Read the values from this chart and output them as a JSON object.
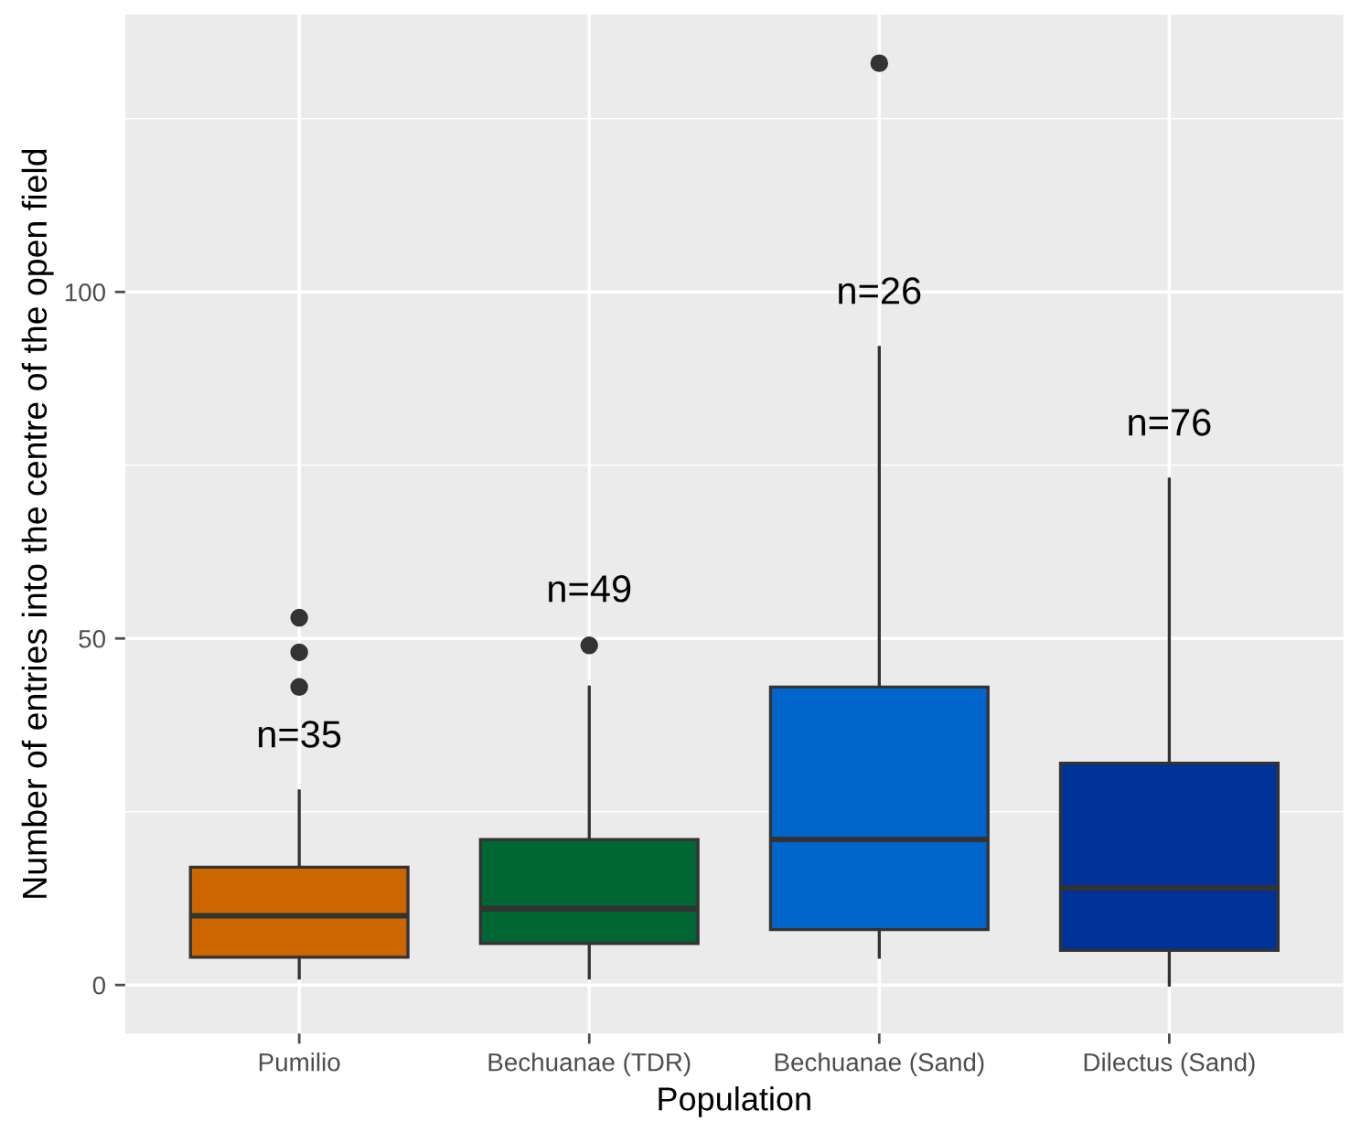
{
  "chart_data": {
    "type": "box",
    "xlabel": "Population",
    "ylabel": "Number of entries into the centre of the open field",
    "categories": [
      "Pumilio",
      "Bechuanae (TDR)",
      "Bechuanae (Sand)",
      "Dilectus (Sand)"
    ],
    "colors": [
      "#cc6600",
      "#006633",
      "#0066cc",
      "#003399"
    ],
    "boxes": [
      {
        "low": 1,
        "q1": 4,
        "median": 10,
        "q3": 17,
        "high": 28,
        "outliers": [
          43,
          48,
          53
        ]
      },
      {
        "low": 1,
        "q1": 6,
        "median": 11,
        "q3": 21,
        "high": 43,
        "outliers": [
          49
        ]
      },
      {
        "low": 4,
        "q1": 8,
        "median": 21,
        "q3": 43,
        "high": 92,
        "outliers": [
          133
        ]
      },
      {
        "low": 0,
        "q1": 5,
        "median": 14,
        "q3": 32,
        "high": 73
      }
    ],
    "annotations": [
      "n=35",
      "n=49",
      "n=26",
      "n=76"
    ],
    "ylim": [
      -7,
      140
    ],
    "yticks": [
      0,
      50,
      100
    ],
    "grid": true
  }
}
